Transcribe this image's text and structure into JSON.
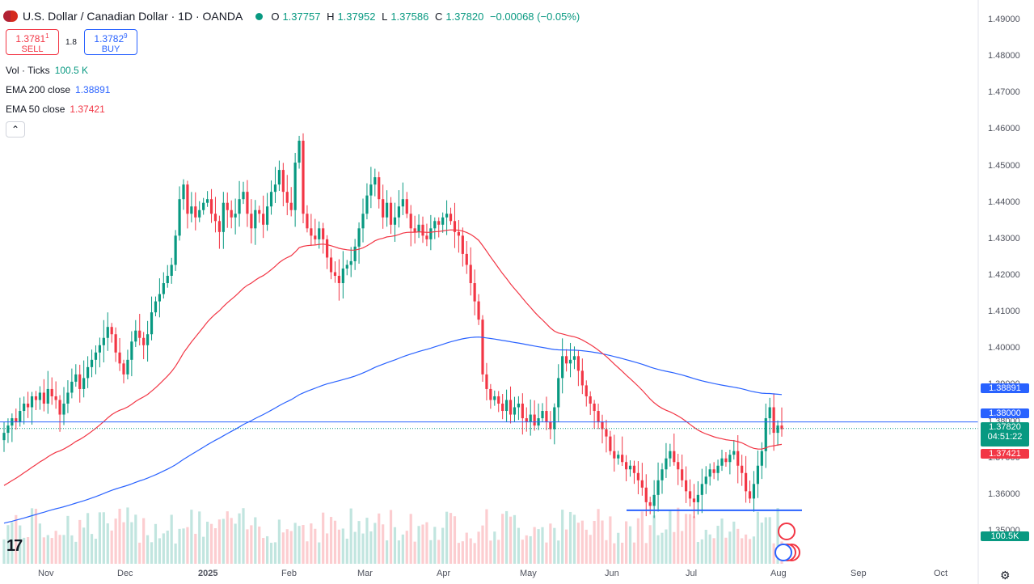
{
  "header": {
    "title": "U.S. Dollar / Canadian Dollar · 1D · OANDA",
    "ohlc": [
      {
        "k": "O",
        "v": "1.37757"
      },
      {
        "k": "H",
        "v": "1.37952"
      },
      {
        "k": "L",
        "v": "1.37586"
      },
      {
        "k": "C",
        "v": "1.37820"
      }
    ],
    "change": "−0.00068 (−0.05%)"
  },
  "trade": {
    "sell_price": "1.3781",
    "sell_sup": "1",
    "sell_label": "SELL",
    "spread": "1.8",
    "buy_price": "1.3782",
    "buy_sup": "9",
    "buy_label": "BUY"
  },
  "indicators": {
    "vol_label": "Vol · Ticks",
    "vol_value": "100.5 K",
    "ema200_label": "EMA 200 close",
    "ema200_value": "1.38891",
    "ema50_label": "EMA 50 close",
    "ema50_value": "1.37421"
  },
  "colors": {
    "up": "#089981",
    "down": "#f23645",
    "ema200": "#2962ff",
    "ema50": "#f23645",
    "support_line": "#2962ff"
  },
  "price_axis": [
    "1.49000",
    "1.48000",
    "1.47000",
    "1.46000",
    "1.45000",
    "1.44000",
    "1.43000",
    "1.42000",
    "1.41000",
    "1.40000",
    "1.39000",
    "1.38000",
    "1.37000",
    "1.36000",
    "1.35000"
  ],
  "price_labels": {
    "ema200": "1.38891",
    "level": "1.38000",
    "last": "1.37820",
    "countdown": "04:51:22",
    "ema50": "1.37421",
    "volume": "100.5K"
  },
  "time_axis": [
    "Nov",
    "Dec",
    "2025",
    "Feb",
    "Mar",
    "Apr",
    "May",
    "Jun",
    "Jul",
    "Aug",
    "Sep",
    "Oct"
  ],
  "chart_data": {
    "type": "candlestick",
    "title": "U.S. Dollar / Canadian Dollar · 1D · OANDA",
    "ylim": [
      1.35,
      1.49
    ],
    "support_level": 1.3558,
    "horizontal_level": 1.38,
    "series": [
      {
        "name": "EMA 200 close",
        "last": 1.38891
      },
      {
        "name": "EMA 50 close",
        "last": 1.37421
      }
    ],
    "closes_approx": [
      1.377,
      1.379,
      1.381,
      1.38,
      1.383,
      1.385,
      1.384,
      1.387,
      1.386,
      1.388,
      1.385,
      1.389,
      1.387,
      1.386,
      1.382,
      1.385,
      1.388,
      1.391,
      1.393,
      1.389,
      1.392,
      1.395,
      1.397,
      1.399,
      1.401,
      1.403,
      1.406,
      1.404,
      1.399,
      1.396,
      1.393,
      1.397,
      1.402,
      1.405,
      1.403,
      1.401,
      1.404,
      1.41,
      1.413,
      1.415,
      1.418,
      1.42,
      1.423,
      1.431,
      1.441,
      1.445,
      1.437,
      1.439,
      1.436,
      1.438,
      1.44,
      1.441,
      1.437,
      1.435,
      1.432,
      1.44,
      1.438,
      1.436,
      1.437,
      1.441,
      1.443,
      1.437,
      1.433,
      1.438,
      1.437,
      1.434,
      1.439,
      1.443,
      1.445,
      1.449,
      1.443,
      1.44,
      1.438,
      1.451,
      1.457,
      1.437,
      1.433,
      1.431,
      1.43,
      1.433,
      1.43,
      1.425,
      1.421,
      1.42,
      1.418,
      1.422,
      1.423,
      1.424,
      1.428,
      1.433,
      1.437,
      1.442,
      1.445,
      1.447,
      1.441,
      1.436,
      1.44,
      1.434,
      1.436,
      1.439,
      1.441,
      1.437,
      1.433,
      1.432,
      1.434,
      1.431,
      1.43,
      1.433,
      1.435,
      1.434,
      1.436,
      1.437,
      1.435,
      1.432,
      1.431,
      1.426,
      1.423,
      1.418,
      1.413,
      1.408,
      1.393,
      1.389,
      1.386,
      1.387,
      1.385,
      1.383,
      1.386,
      1.382,
      1.384,
      1.385,
      1.381,
      1.38,
      1.382,
      1.379,
      1.381,
      1.383,
      1.38,
      1.378,
      1.384,
      1.392,
      1.398,
      1.396,
      1.397,
      1.398,
      1.394,
      1.39,
      1.387,
      1.385,
      1.383,
      1.38,
      1.378,
      1.376,
      1.372,
      1.37,
      1.371,
      1.369,
      1.367,
      1.368,
      1.366,
      1.364,
      1.362,
      1.358,
      1.357,
      1.36,
      1.364,
      1.367,
      1.37,
      1.372,
      1.369,
      1.367,
      1.364,
      1.361,
      1.359,
      1.358,
      1.36,
      1.363,
      1.365,
      1.367,
      1.366,
      1.368,
      1.37,
      1.369,
      1.371,
      1.372,
      1.368,
      1.366,
      1.361,
      1.359,
      1.363,
      1.368,
      1.372,
      1.381,
      1.384,
      1.377,
      1.379,
      1.378
    ]
  }
}
